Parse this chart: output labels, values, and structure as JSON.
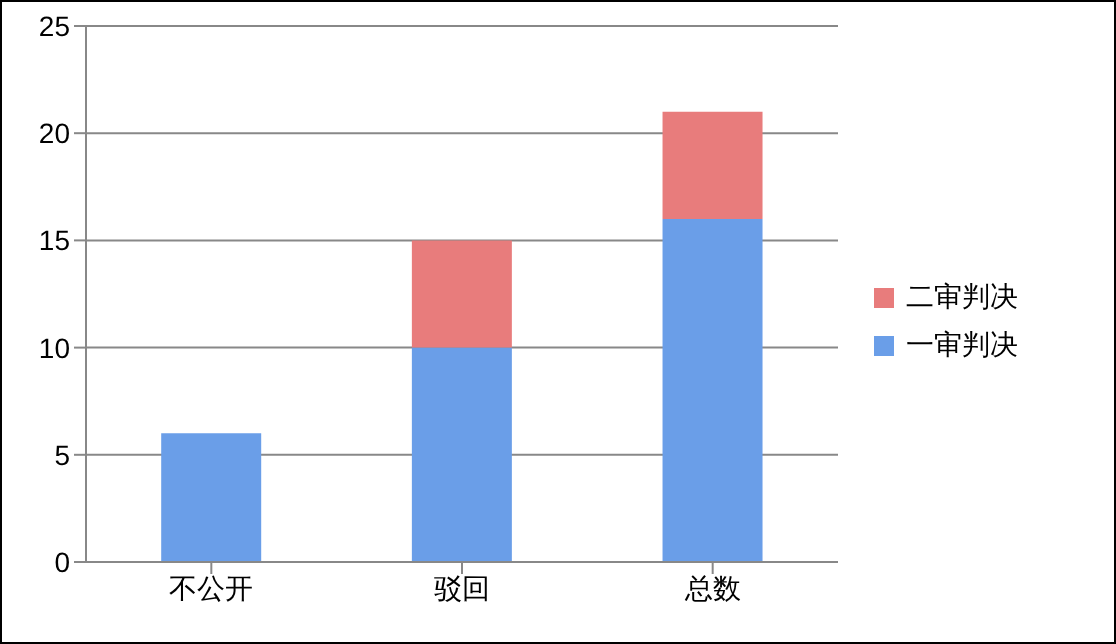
{
  "chart_data": {
    "type": "bar",
    "categories": [
      "不公开",
      "驳回",
      "总数"
    ],
    "stacked": true,
    "series": [
      {
        "name": "一审判决",
        "color": "#6a9ee8",
        "values": [
          6,
          10,
          16
        ]
      },
      {
        "name": "二审判决",
        "color": "#e87c7c",
        "values": [
          0,
          5,
          5
        ]
      }
    ],
    "ylim": [
      0,
      25
    ],
    "yticks": [
      0,
      5,
      10,
      15,
      20,
      25
    ],
    "grid": "y",
    "legend": "right"
  }
}
